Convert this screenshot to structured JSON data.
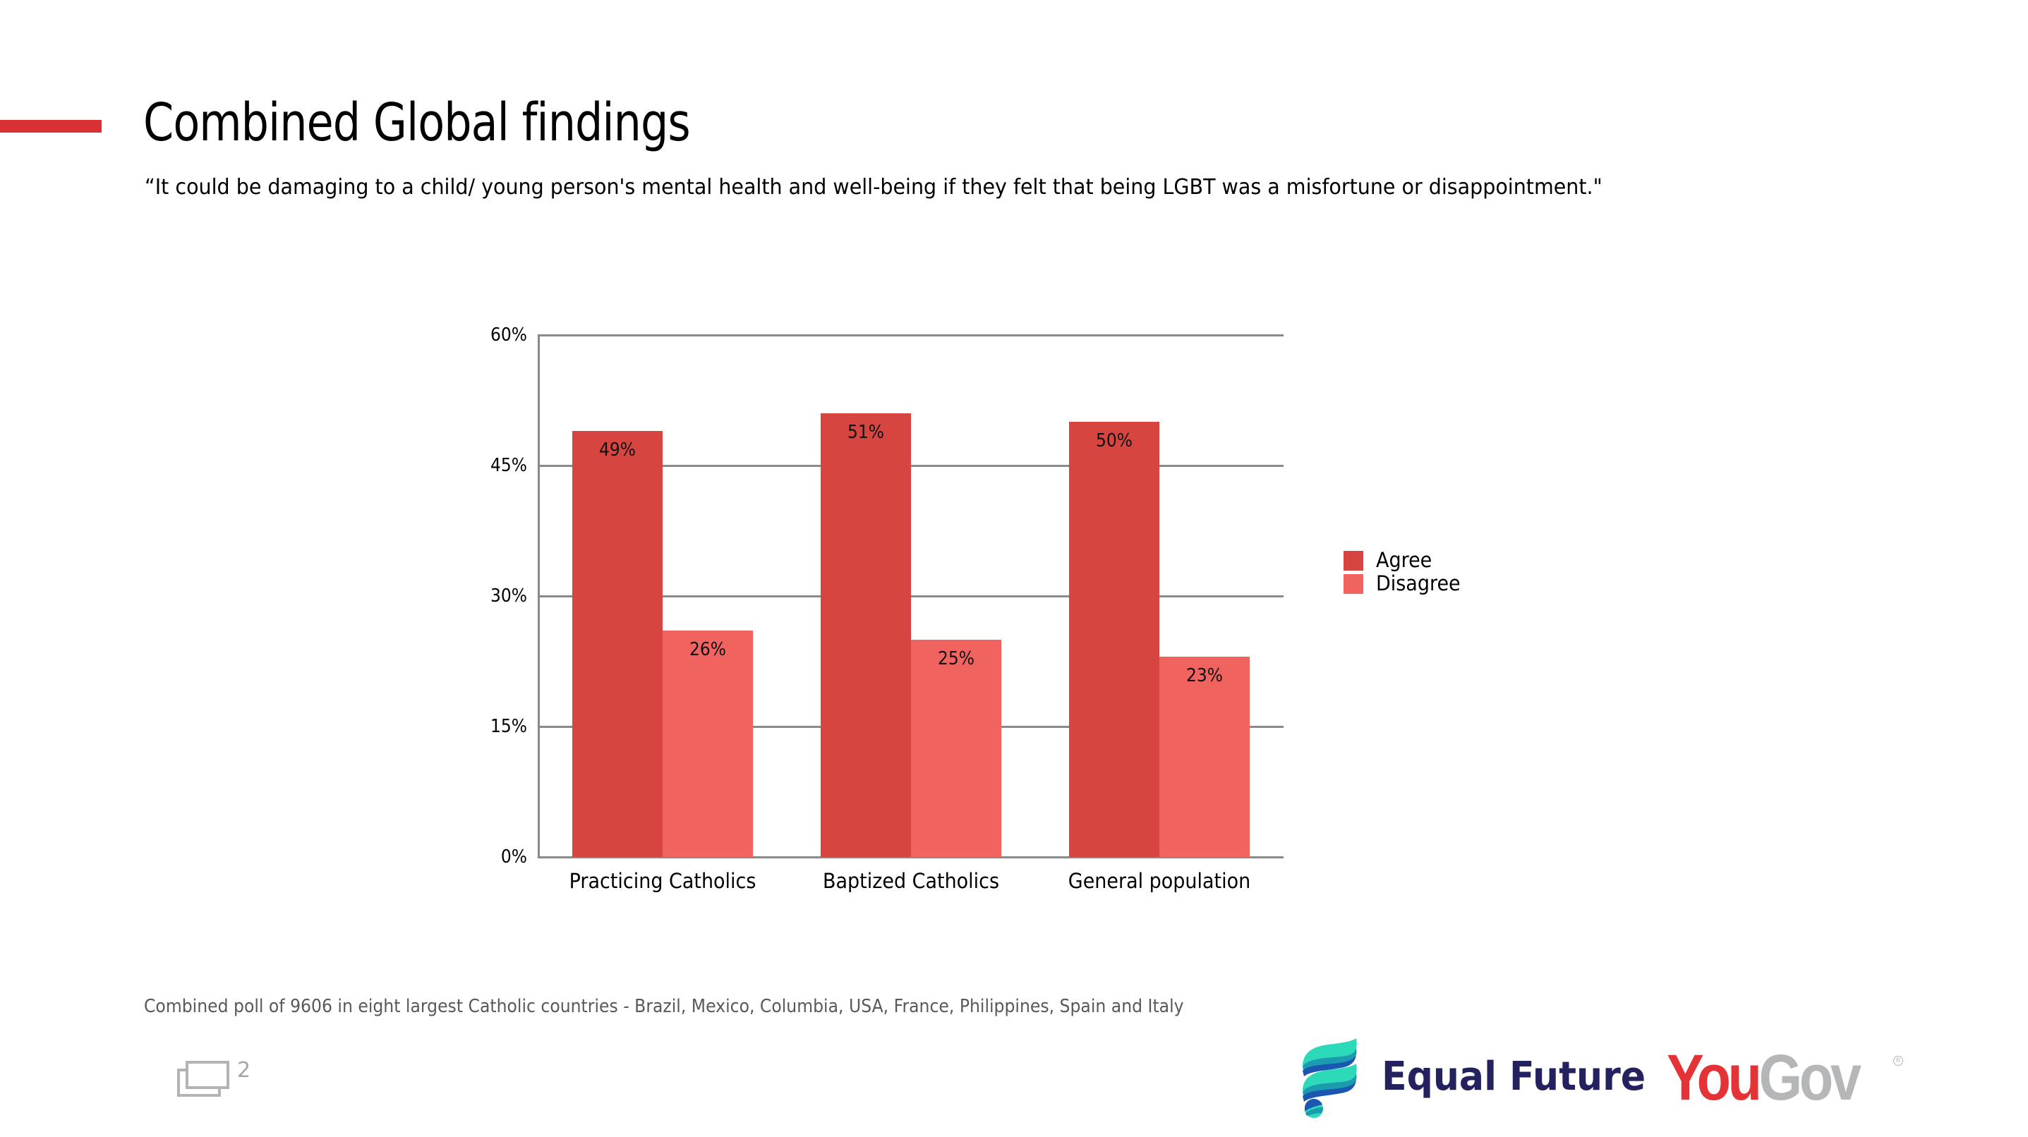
{
  "slide": {
    "title": "Combined Global findings",
    "subtitle": "“It could be damaging to a child/ young person's mental health and well-being if they felt that being LGBT was a misfortune or disappointment.\"",
    "accent_color": "#d93036",
    "footnote": "Combined poll of 9606 in eight largest Catholic countries - Brazil, Mexico, Columbia, USA, France, Philippines, Spain and Italy",
    "page_number": "2",
    "slides_icon": "slides-icon"
  },
  "logos": {
    "equal_future": {
      "text": "Equal Future",
      "icon": "wave-flag-icon",
      "text_color": "#24215f",
      "icon_colors": [
        "#2cd9b8",
        "#1a9bb0",
        "#1b56b0"
      ]
    },
    "yougov": {
      "you": "You",
      "gov": "Gov",
      "registered": "R",
      "you_color": "#e53236",
      "gov_color": "#b5b6b8"
    }
  },
  "chart_data": {
    "type": "bar",
    "title": "",
    "xlabel": "",
    "ylabel": "",
    "categories": [
      "Practicing Catholics",
      "Baptized Catholics",
      "General population"
    ],
    "series": [
      {
        "name": "Agree",
        "color": "#d64540",
        "values": [
          49,
          51,
          50
        ],
        "labels": [
          "49%",
          "51%",
          "50%"
        ]
      },
      {
        "name": "Disagree",
        "color": "#f0635f",
        "values": [
          26,
          25,
          23
        ],
        "labels": [
          "26%",
          "25%",
          "23%"
        ]
      }
    ],
    "ylim": [
      0,
      60
    ],
    "yticks": [
      0,
      15,
      30,
      45,
      60
    ],
    "ytick_labels": [
      "0%",
      "15%",
      "30%",
      "45%",
      "60%"
    ],
    "grid": true,
    "grid_color": "#898989",
    "legend_position": "right",
    "data_labels": true
  }
}
